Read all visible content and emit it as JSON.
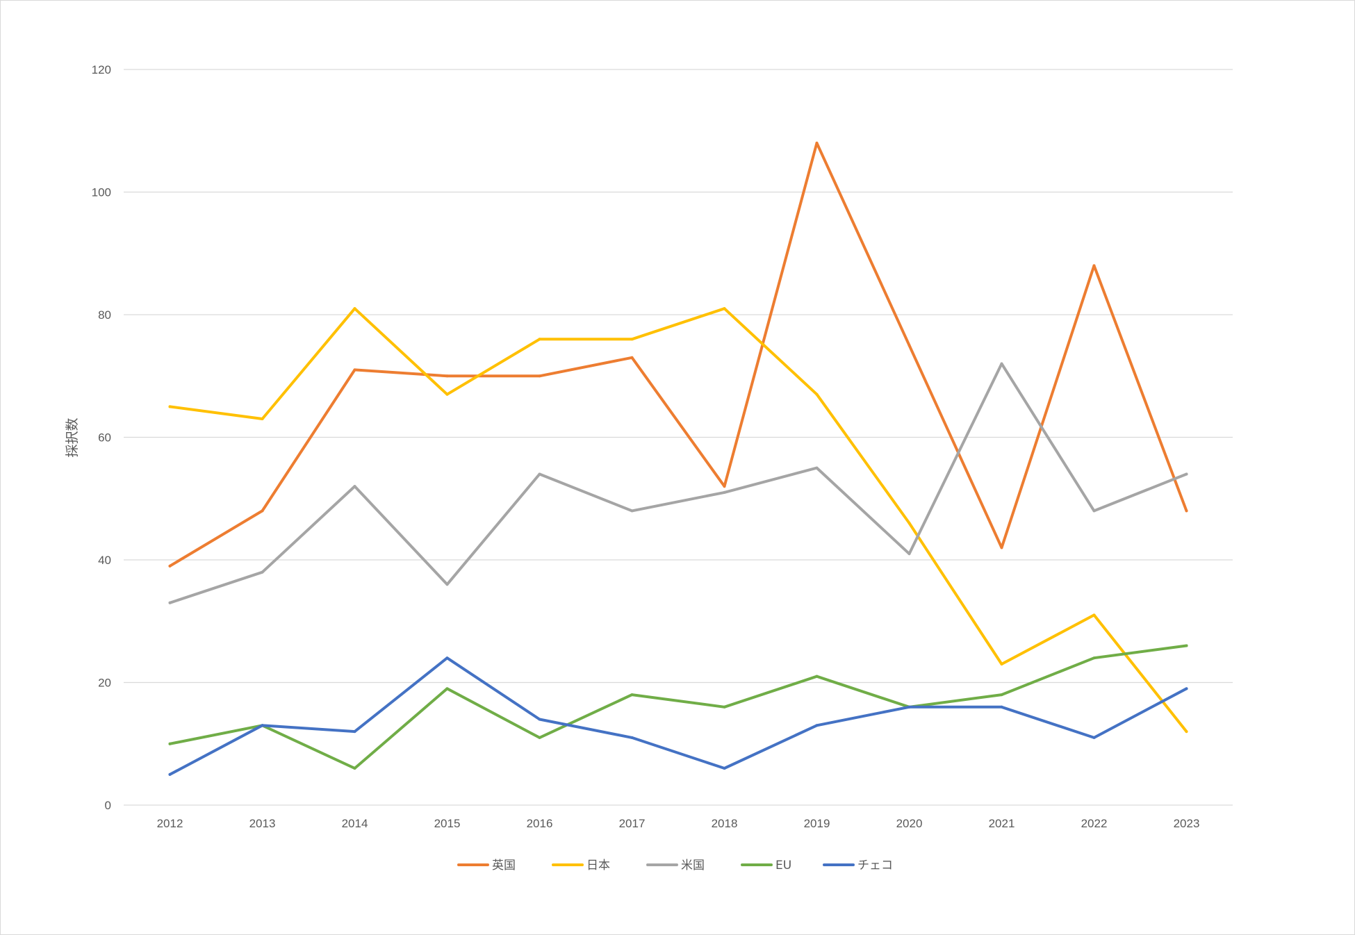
{
  "chart_data": {
    "type": "line",
    "title": "",
    "xlabel": "",
    "ylabel": "採択数",
    "ylim": [
      0,
      120
    ],
    "yticks": [
      0,
      20,
      40,
      60,
      80,
      100,
      120
    ],
    "grid": true,
    "legend_position": "bottom",
    "categories": [
      "2012",
      "2013",
      "2014",
      "2015",
      "2016",
      "2017",
      "2018",
      "2019",
      "2020",
      "2021",
      "2022",
      "2023"
    ],
    "series": [
      {
        "name": "英国",
        "color": "#ED7D31",
        "values": [
          39,
          48,
          71,
          70,
          70,
          73,
          52,
          108,
          75,
          42,
          88,
          48
        ]
      },
      {
        "name": "日本",
        "color": "#FFC000",
        "values": [
          65,
          63,
          81,
          67,
          76,
          76,
          81,
          67,
          46,
          23,
          31,
          12
        ]
      },
      {
        "name": "米国",
        "color": "#A5A5A5",
        "values": [
          33,
          38,
          52,
          36,
          54,
          48,
          51,
          55,
          41,
          72,
          48,
          54
        ]
      },
      {
        "name": "EU",
        "color": "#70AD47",
        "values": [
          10,
          13,
          6,
          19,
          11,
          18,
          16,
          21,
          16,
          18,
          24,
          26
        ]
      },
      {
        "name": "チェコ",
        "color": "#4472C4",
        "values": [
          5,
          13,
          12,
          24,
          14,
          11,
          6,
          13,
          16,
          16,
          11,
          19
        ]
      }
    ]
  }
}
